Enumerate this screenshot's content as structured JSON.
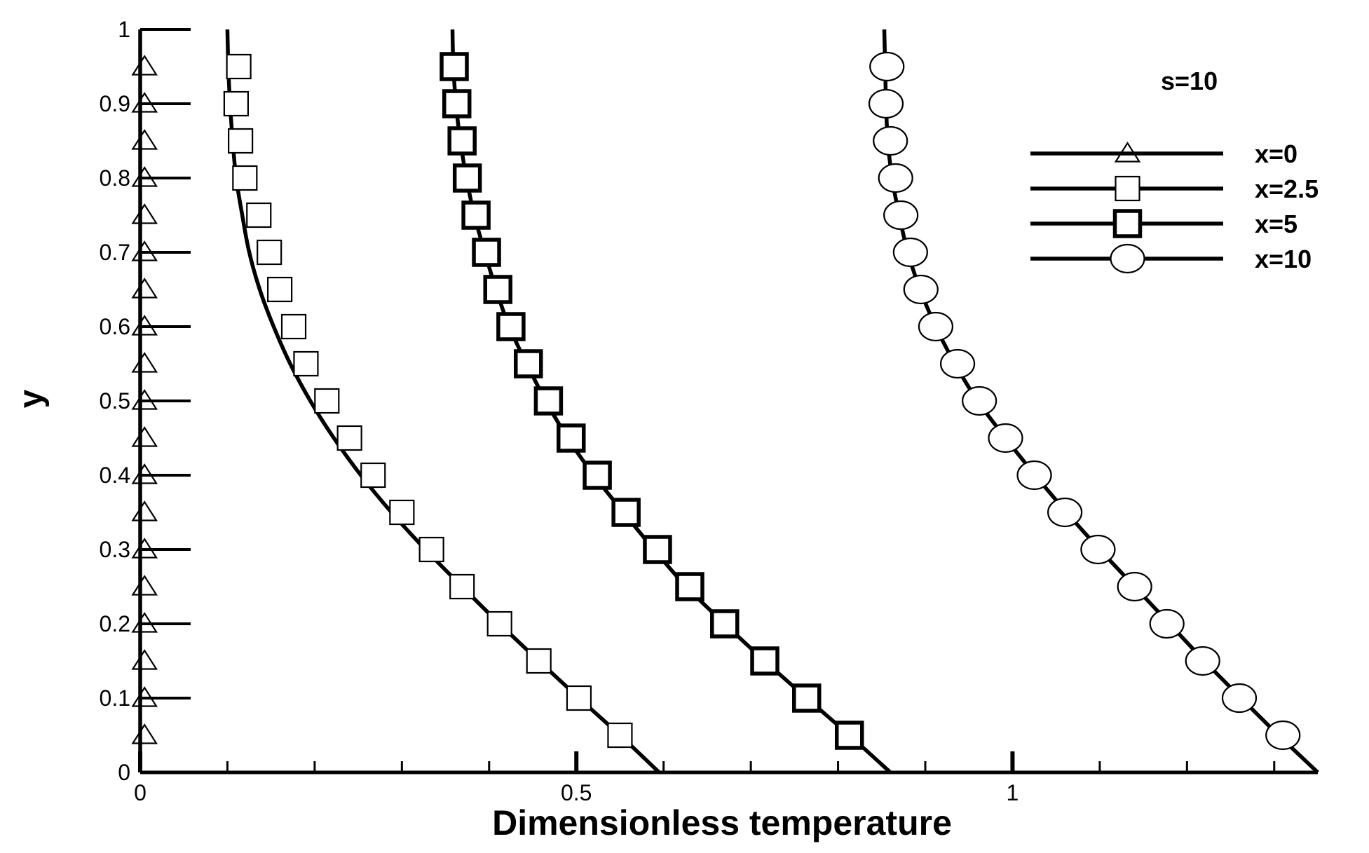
{
  "chart_data": {
    "type": "line",
    "title": "",
    "xlabel": "Dimensionless temperature",
    "ylabel": "y",
    "xlim": [
      0,
      1.35
    ],
    "ylim": [
      0,
      1
    ],
    "x_major_ticks": [
      0,
      0.5,
      1
    ],
    "x_major_tick_labels": [
      "0",
      "0.5",
      "1"
    ],
    "x_minor_ticks": [
      0.1,
      0.2,
      0.3,
      0.4,
      0.6,
      0.7,
      0.8,
      0.9,
      1.1,
      1.2,
      1.3
    ],
    "y_ticks": [
      0,
      0.1,
      0.2,
      0.3,
      0.4,
      0.5,
      0.6,
      0.7,
      0.8,
      0.9,
      1
    ],
    "y_tick_labels": [
      "0",
      "0.1",
      "0.2",
      "0.3",
      "0.4",
      "0.5",
      "0.6",
      "0.7",
      "0.8",
      "0.9",
      "1"
    ],
    "grid": false,
    "legend_title": "s=10",
    "legend_position": "top-right",
    "series": [
      {
        "name": "x=0",
        "marker": "triangle",
        "marker_weight": "thin",
        "color": "#000000",
        "line": {
          "y": [
            0,
            0.1,
            0.2,
            0.3,
            0.4,
            0.5,
            0.6,
            0.7,
            0.8,
            0.9,
            1
          ],
          "x": [
            0,
            0,
            0,
            0,
            0,
            0,
            0,
            0,
            0,
            0,
            0
          ]
        },
        "markers": {
          "y": [
            0.05,
            0.1,
            0.15,
            0.2,
            0.25,
            0.3,
            0.35,
            0.4,
            0.45,
            0.5,
            0.55,
            0.6,
            0.65,
            0.7,
            0.75,
            0.8,
            0.85,
            0.9,
            0.95
          ],
          "x": [
            0.005,
            0.005,
            0.005,
            0.005,
            0.005,
            0.005,
            0.005,
            0.005,
            0.005,
            0.005,
            0.005,
            0.005,
            0.005,
            0.005,
            0.005,
            0.005,
            0.005,
            0.005,
            0.005
          ]
        }
      },
      {
        "name": "x=2.5",
        "marker": "square",
        "marker_weight": "thin",
        "color": "#000000",
        "line": {
          "y": [
            0,
            0.05,
            0.1,
            0.15,
            0.2,
            0.25,
            0.3,
            0.35,
            0.4,
            0.45,
            0.5,
            0.55,
            0.6,
            0.65,
            0.7,
            0.75,
            0.8,
            0.85,
            0.9,
            0.95,
            1
          ],
          "x": [
            0.595,
            0.55,
            0.503,
            0.457,
            0.412,
            0.369,
            0.327,
            0.288,
            0.253,
            0.222,
            0.195,
            0.172,
            0.153,
            0.137,
            0.125,
            0.117,
            0.11,
            0.106,
            0.103,
            0.101,
            0.1
          ]
        },
        "markers": {
          "y": [
            0.05,
            0.1,
            0.15,
            0.2,
            0.25,
            0.3,
            0.35,
            0.4,
            0.45,
            0.5,
            0.55,
            0.6,
            0.65,
            0.7,
            0.75,
            0.8,
            0.85,
            0.9,
            0.95
          ],
          "x": [
            0.55,
            0.503,
            0.457,
            0.412,
            0.369,
            0.334,
            0.3,
            0.267,
            0.24,
            0.214,
            0.19,
            0.176,
            0.16,
            0.148,
            0.136,
            0.12,
            0.115,
            0.11,
            0.113
          ]
        }
      },
      {
        "name": "x=5",
        "marker": "square",
        "marker_weight": "bold",
        "color": "#000000",
        "line": {
          "y": [
            0,
            0.05,
            0.1,
            0.15,
            0.2,
            0.25,
            0.3,
            0.35,
            0.4,
            0.45,
            0.5,
            0.55,
            0.6,
            0.65,
            0.7,
            0.75,
            0.8,
            0.85,
            0.9,
            0.95,
            1
          ],
          "x": [
            0.86,
            0.813,
            0.764,
            0.716,
            0.67,
            0.626,
            0.589,
            0.554,
            0.52,
            0.49,
            0.465,
            0.443,
            0.423,
            0.408,
            0.395,
            0.383,
            0.374,
            0.367,
            0.362,
            0.359,
            0.358
          ]
        },
        "markers": {
          "y": [
            0.05,
            0.1,
            0.15,
            0.2,
            0.25,
            0.3,
            0.35,
            0.4,
            0.45,
            0.5,
            0.55,
            0.6,
            0.65,
            0.7,
            0.75,
            0.8,
            0.85,
            0.9,
            0.95
          ],
          "x": [
            0.813,
            0.764,
            0.716,
            0.67,
            0.63,
            0.593,
            0.557,
            0.524,
            0.494,
            0.468,
            0.445,
            0.425,
            0.41,
            0.397,
            0.385,
            0.375,
            0.369,
            0.363,
            0.36
          ]
        }
      },
      {
        "name": "x=10",
        "marker": "circle",
        "marker_weight": "thin",
        "color": "#000000",
        "line": {
          "y": [
            0,
            0.05,
            0.1,
            0.15,
            0.2,
            0.25,
            0.3,
            0.35,
            0.4,
            0.45,
            0.5,
            0.55,
            0.6,
            0.65,
            0.7,
            0.75,
            0.8,
            0.85,
            0.9,
            0.95,
            1
          ],
          "x": [
            1.35,
            1.305,
            1.262,
            1.22,
            1.18,
            1.14,
            1.1,
            1.062,
            1.026,
            0.992,
            0.96,
            0.934,
            0.912,
            0.894,
            0.88,
            0.87,
            0.862,
            0.857,
            0.855,
            0.854,
            0.853
          ]
        },
        "markers": {
          "y": [
            0.05,
            0.1,
            0.15,
            0.2,
            0.25,
            0.3,
            0.35,
            0.4,
            0.45,
            0.5,
            0.55,
            0.6,
            0.65,
            0.7,
            0.75,
            0.8,
            0.85,
            0.9,
            0.95
          ],
          "x": [
            1.31,
            1.26,
            1.218,
            1.177,
            1.14,
            1.098,
            1.06,
            1.025,
            0.992,
            0.962,
            0.937,
            0.912,
            0.895,
            0.883,
            0.872,
            0.866,
            0.86,
            0.855,
            0.856
          ]
        }
      }
    ]
  }
}
